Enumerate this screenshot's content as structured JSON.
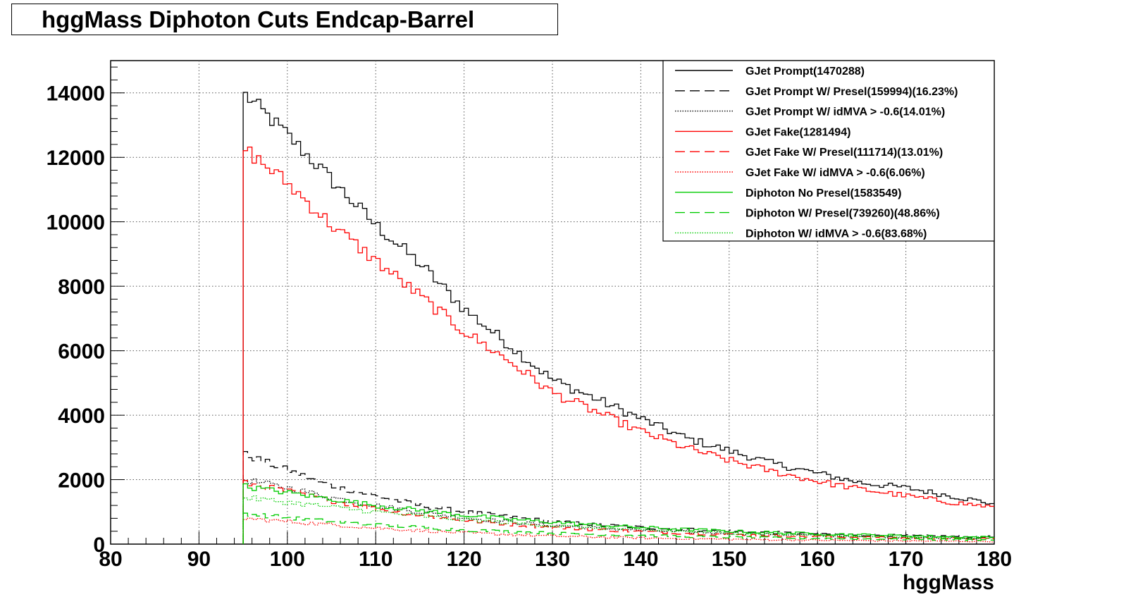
{
  "chart_data": {
    "type": "line",
    "title": "hggMass Diphoton Cuts Endcap-Barrel",
    "xlabel": "hggMass",
    "ylabel": "",
    "xlim": [
      80,
      180
    ],
    "ylim": [
      0,
      15000
    ],
    "x_ticks": [
      80,
      90,
      100,
      110,
      120,
      130,
      140,
      150,
      160,
      170,
      180
    ],
    "x_tick_labels": [
      "80",
      "90",
      "100",
      "110",
      "120",
      "130",
      "140",
      "150",
      "160",
      "170",
      "180"
    ],
    "y_ticks": [
      0,
      2000,
      4000,
      6000,
      8000,
      10000,
      12000,
      14000
    ],
    "y_tick_labels": [
      "0",
      "2000",
      "4000",
      "6000",
      "8000",
      "10000",
      "12000",
      "14000"
    ],
    "grid": true,
    "legend_position": "top-right",
    "histogram_range": [
      95,
      180
    ],
    "series": [
      {
        "name": "GJet Prompt(1470288)",
        "color": "#000000",
        "style": "solid",
        "x": [
          95,
          100,
          105,
          110,
          115,
          120,
          125,
          130,
          135,
          140,
          145,
          150,
          155,
          160,
          165,
          170,
          175,
          180
        ],
        "values": [
          14000,
          12700,
          11300,
          9900,
          8700,
          7300,
          6200,
          5100,
          4500,
          3900,
          3300,
          2900,
          2500,
          2200,
          1900,
          1750,
          1500,
          1250
        ]
      },
      {
        "name": "GJet Prompt W/ Presel(159994)(16.23%)",
        "color": "#000000",
        "style": "dashed",
        "x": [
          95,
          100,
          105,
          110,
          115,
          120,
          125,
          130,
          135,
          140,
          145,
          150,
          155,
          160,
          165,
          170,
          175,
          180
        ],
        "values": [
          2800,
          2300,
          1800,
          1500,
          1200,
          1000,
          850,
          700,
          600,
          520,
          460,
          410,
          360,
          320,
          290,
          260,
          240,
          220
        ]
      },
      {
        "name": "GJet Prompt W/ idMVA > -0.6(14.01%)",
        "color": "#000000",
        "style": "dotted",
        "x": [
          95,
          100,
          105,
          110,
          115,
          120,
          125,
          130,
          135,
          140,
          145,
          150,
          155,
          160,
          165,
          170,
          175,
          180
        ],
        "values": [
          2000,
          1750,
          1450,
          1200,
          1000,
          820,
          690,
          580,
          500,
          430,
          380,
          340,
          300,
          270,
          240,
          220,
          200,
          180
        ]
      },
      {
        "name": "GJet Fake(1281494)",
        "color": "#ff0000",
        "style": "solid",
        "x": [
          95,
          100,
          105,
          110,
          115,
          120,
          125,
          130,
          135,
          140,
          145,
          150,
          155,
          160,
          165,
          170,
          175,
          180
        ],
        "values": [
          12300,
          11200,
          9900,
          8800,
          7700,
          6600,
          5700,
          4700,
          4100,
          3500,
          3000,
          2600,
          2250,
          1950,
          1700,
          1500,
          1300,
          1150
        ]
      },
      {
        "name": "GJet Fake W/ Presel(111714)(13.01%)",
        "color": "#ff0000",
        "style": "dashed",
        "x": [
          95,
          100,
          105,
          110,
          115,
          120,
          125,
          130,
          135,
          140,
          145,
          150,
          155,
          160,
          165,
          170,
          175,
          180
        ],
        "values": [
          1900,
          1650,
          1350,
          1100,
          900,
          740,
          620,
          520,
          450,
          390,
          340,
          300,
          265,
          235,
          210,
          190,
          175,
          160
        ]
      },
      {
        "name": "GJet Fake W/ idMVA > -0.6(6.06%)",
        "color": "#ff0000",
        "style": "dotted",
        "x": [
          95,
          100,
          105,
          110,
          115,
          120,
          125,
          130,
          135,
          140,
          145,
          150,
          155,
          160,
          165,
          170,
          175,
          180
        ],
        "values": [
          800,
          700,
          600,
          500,
          420,
          350,
          300,
          250,
          220,
          190,
          170,
          150,
          135,
          120,
          110,
          100,
          90,
          85
        ]
      },
      {
        "name": "Diphoton No Presel(1583549)",
        "color": "#00cc00",
        "style": "solid",
        "x": [
          95,
          100,
          105,
          110,
          115,
          120,
          125,
          130,
          135,
          140,
          145,
          150,
          155,
          160,
          165,
          170,
          175,
          180
        ],
        "values": [
          1800,
          1600,
          1400,
          1200,
          1050,
          900,
          780,
          680,
          590,
          520,
          460,
          400,
          360,
          320,
          290,
          260,
          230,
          210
        ]
      },
      {
        "name": "Diphoton W/ Presel(739260)(48.86%)",
        "color": "#00cc00",
        "style": "dashed",
        "x": [
          95,
          100,
          105,
          110,
          115,
          120,
          125,
          130,
          135,
          140,
          145,
          150,
          155,
          160,
          165,
          170,
          175,
          180
        ],
        "values": [
          950,
          820,
          700,
          600,
          520,
          440,
          390,
          340,
          300,
          270,
          240,
          215,
          195,
          180,
          165,
          150,
          140,
          130
        ]
      },
      {
        "name": "Diphoton W/ idMVA > -0.6(83.68%)",
        "color": "#00cc00",
        "style": "dotted",
        "x": [
          95,
          100,
          105,
          110,
          115,
          120,
          125,
          130,
          135,
          140,
          145,
          150,
          155,
          160,
          165,
          170,
          175,
          180
        ],
        "values": [
          1450,
          1300,
          1150,
          1000,
          870,
          760,
          660,
          570,
          500,
          440,
          390,
          345,
          310,
          280,
          250,
          225,
          205,
          190
        ]
      }
    ]
  }
}
